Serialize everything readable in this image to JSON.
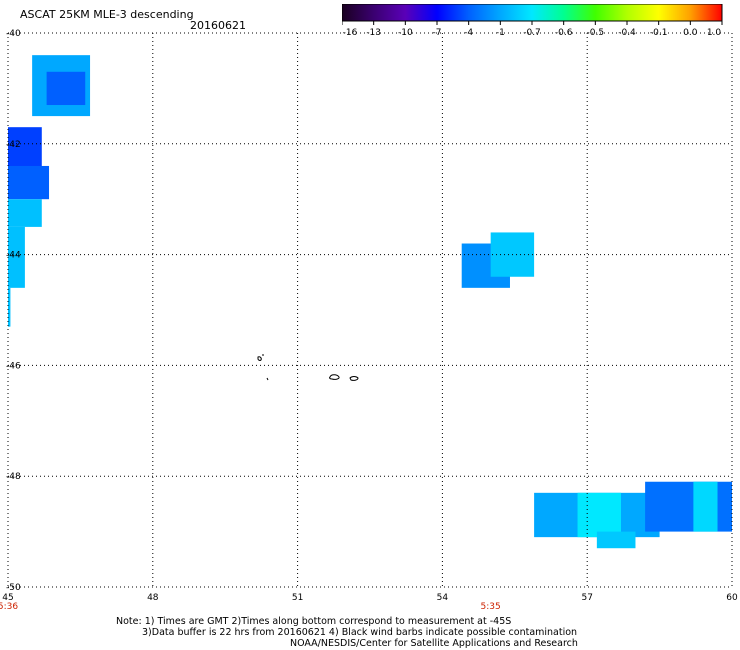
{
  "header": {
    "title": "ASCAT 25KM MLE-3 descending",
    "date": "20160621"
  },
  "colorbar": {
    "labels": [
      "-16",
      "-13",
      "-10",
      "-7",
      "-4",
      "-1",
      "-0.7",
      "-0.6",
      "-0.5",
      "-0.4",
      "-0.1",
      "0.0",
      "1.0"
    ],
    "colors": [
      "#1a0020",
      "#3a0070",
      "#5a00b8",
      "#0000ff",
      "#0060ff",
      "#00a8ff",
      "#00e8ff",
      "#00ff90",
      "#40ff00",
      "#b0ff00",
      "#ffff00",
      "#ffa000",
      "#ff0000"
    ]
  },
  "notes": {
    "line1": "Note: 1) Times are GMT 2)Times along bottom correspond to measurement at -45S",
    "line2": "3)Data buffer is 22 hrs from 20160621 4) Black wind barbs indicate possible contamination",
    "line3": "NOAA/NESDIS/Center for Satellite Applications and Research"
  },
  "chart_data": {
    "type": "heatmap",
    "xlim": [
      45,
      60
    ],
    "ylim": [
      -50,
      -40
    ],
    "x_ticks": [
      "45",
      "48",
      "51",
      "54",
      "57",
      "60"
    ],
    "y_ticks": [
      "-40",
      "-42",
      "-44",
      "-46",
      "-48",
      "-50"
    ],
    "grid": true,
    "time_labels": [
      {
        "lon": 45,
        "text": "5:36"
      },
      {
        "lon": 55,
        "text": "5:35"
      }
    ],
    "cells": [
      {
        "lon0": 45.5,
        "lon1": 46.7,
        "lat0": -41.5,
        "lat1": -40.4,
        "color": "#00a8ff"
      },
      {
        "lon0": 45.8,
        "lon1": 46.6,
        "lat0": -41.3,
        "lat1": -40.7,
        "color": "#0060ff"
      },
      {
        "lon0": 45.0,
        "lon1": 45.7,
        "lat0": -42.8,
        "lat1": -41.7,
        "color": "#0040ff"
      },
      {
        "lon0": 45.0,
        "lon1": 45.85,
        "lat0": -43.0,
        "lat1": -42.4,
        "color": "#0060ff"
      },
      {
        "lon0": 45.0,
        "lon1": 45.7,
        "lat0": -43.5,
        "lat1": -43.0,
        "color": "#00c0ff"
      },
      {
        "lon0": 45.0,
        "lon1": 45.35,
        "lat0": -44.6,
        "lat1": -43.5,
        "color": "#00c0ff"
      },
      {
        "lon0": 45.0,
        "lon1": 45.05,
        "lat0": -45.3,
        "lat1": -44.6,
        "color": "#00c0ff"
      },
      {
        "lon0": 54.4,
        "lon1": 55.4,
        "lat0": -44.6,
        "lat1": -43.8,
        "color": "#0090ff"
      },
      {
        "lon0": 55.0,
        "lon1": 55.9,
        "lat0": -44.4,
        "lat1": -43.6,
        "color": "#00c8ff"
      },
      {
        "lon0": 55.9,
        "lon1": 58.5,
        "lat0": -49.1,
        "lat1": -48.3,
        "color": "#00a8ff"
      },
      {
        "lon0": 56.8,
        "lon1": 57.7,
        "lat0": -49.1,
        "lat1": -48.3,
        "color": "#00e8ff"
      },
      {
        "lon0": 57.2,
        "lon1": 58.0,
        "lat0": -49.3,
        "lat1": -49.0,
        "color": "#00c8ff"
      },
      {
        "lon0": 58.2,
        "lon1": 60.0,
        "lat0": -49.0,
        "lat1": -48.1,
        "color": "#0070ff"
      },
      {
        "lon0": 59.2,
        "lon1": 59.7,
        "lat0": -49.0,
        "lat1": -48.1,
        "color": "#00d8ff"
      }
    ]
  }
}
